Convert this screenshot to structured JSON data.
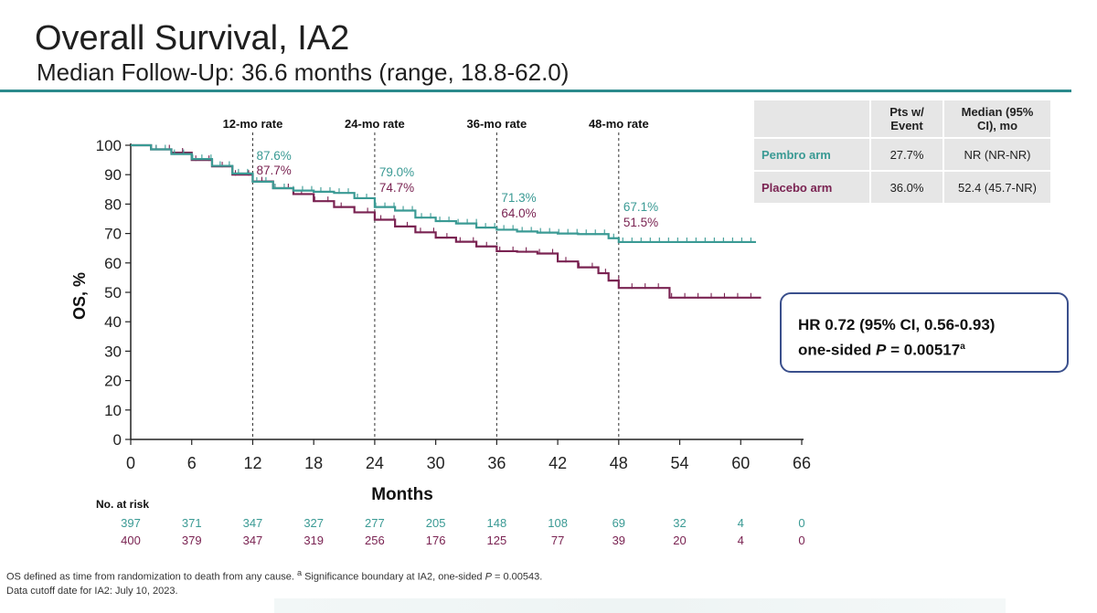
{
  "slide": {
    "title": "Overall Survival, IA2",
    "subtitle": "Median Follow-Up: 36.6 months (range, 18.8-62.0)"
  },
  "table": {
    "col1": "Pts w/ Event",
    "col2": "Median (95% CI), mo",
    "rows": [
      {
        "arm": "Pembro arm",
        "pts": "27.7%",
        "median": "NR (NR-NR)"
      },
      {
        "arm": "Placebo arm",
        "pts": "36.0%",
        "median": "52.4 (45.7-NR)"
      }
    ]
  },
  "hr": {
    "line1": "HR 0.72 (95% CI, 0.56-0.93)",
    "line2_prefix": "one-sided ",
    "line2_p": "P",
    "line2_value": " = 0.00517",
    "line2_sup": "a"
  },
  "footnote": {
    "line1_text": "OS defined as time from randomization to death from any cause. ",
    "line1_sup": "a",
    "line1_rest": " Significance boundary at IA2, one-sided ",
    "line1_p": "P",
    "line1_end": " = 0.00543.",
    "line2": "Data cutoff date for IA2: July 10, 2023."
  },
  "colors": {
    "pembro": "#3a9a94",
    "placebo": "#7a2352",
    "axis": "#222222",
    "rule": "#2b8a8c"
  },
  "chart_data": {
    "type": "line",
    "title": "Overall Survival, IA2",
    "xlabel": "Months",
    "ylabel": "OS, %",
    "xlim": [
      0,
      66
    ],
    "ylim": [
      0,
      100
    ],
    "xticks": [
      0,
      6,
      12,
      18,
      24,
      30,
      36,
      42,
      48,
      54,
      60,
      66
    ],
    "yticks": [
      0,
      10,
      20,
      30,
      40,
      50,
      60,
      70,
      80,
      90,
      100
    ],
    "series": [
      {
        "name": "Pembro arm",
        "color": "#3a9a94",
        "x": [
          0,
          2,
          4,
          6,
          8,
          10,
          12,
          14,
          16,
          18,
          20,
          22,
          24,
          26,
          28,
          30,
          32,
          34,
          36,
          38,
          40,
          42,
          44,
          46,
          47,
          48,
          50,
          52,
          54,
          56,
          58,
          60,
          61.5
        ],
        "y": [
          100,
          98.6,
          97,
          95.3,
          93,
          90.4,
          87.6,
          85.4,
          84.6,
          84.2,
          83.8,
          82,
          79,
          77.8,
          75.4,
          74.2,
          73.4,
          72,
          71.3,
          70.7,
          70.3,
          70,
          69.8,
          69.8,
          68.4,
          67.1,
          67.1,
          67.1,
          67.1,
          67.1,
          67.1,
          67.1,
          67.1
        ]
      },
      {
        "name": "Placebo arm",
        "color": "#7a2352",
        "x": [
          0,
          2,
          4,
          6,
          8,
          10,
          12,
          14,
          16,
          18,
          20,
          22,
          24,
          26,
          28,
          30,
          32,
          34,
          36,
          38,
          40,
          42,
          44,
          46,
          47,
          48,
          50,
          52,
          53,
          54,
          56,
          58,
          60,
          62
        ],
        "y": [
          100,
          98.6,
          97.5,
          95,
          92.8,
          90,
          87.7,
          85.4,
          83.4,
          81,
          79,
          77.2,
          74.7,
          72.4,
          70.4,
          68.6,
          67.2,
          65.6,
          64,
          63.8,
          63.2,
          60.5,
          58.5,
          56.5,
          54,
          51.5,
          51.5,
          51.5,
          48.2,
          48.2,
          48.2,
          48.2,
          48.2,
          48.2
        ]
      }
    ],
    "rate_lines": [
      {
        "x": 12,
        "label": "12-mo rate",
        "pembro": "87.6%",
        "placebo": "87.7%"
      },
      {
        "x": 24,
        "label": "24-mo rate",
        "pembro": "79.0%",
        "placebo": "74.7%"
      },
      {
        "x": 36,
        "label": "36-mo rate",
        "pembro": "71.3%",
        "placebo": "64.0%"
      },
      {
        "x": 48,
        "label": "48-mo rate",
        "pembro": "67.1%",
        "placebo": "51.5%"
      }
    ],
    "at_risk": {
      "label": "No. at risk",
      "pembro": [
        397,
        371,
        347,
        327,
        277,
        205,
        148,
        108,
        69,
        32,
        4,
        0
      ],
      "placebo": [
        400,
        379,
        347,
        319,
        256,
        176,
        125,
        77,
        39,
        20,
        4,
        0
      ]
    }
  }
}
